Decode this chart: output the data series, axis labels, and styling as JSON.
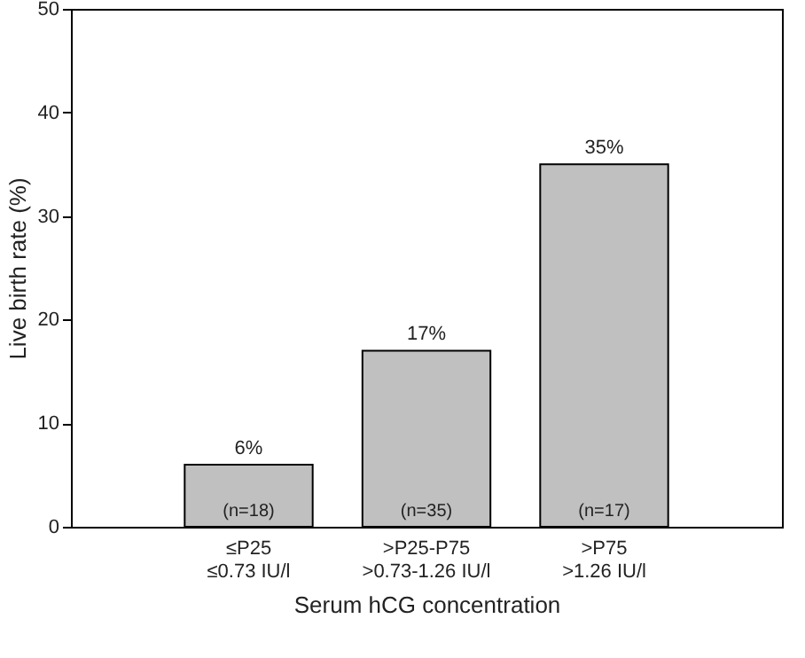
{
  "chart_data": {
    "type": "bar",
    "categories": [
      "≤P25\n≤0.73 IU/l",
      ">P25-P75\n>0.73-1.26 IU/l",
      ">P75\n>1.26 IU/l"
    ],
    "values": [
      6,
      17,
      35
    ],
    "value_labels": [
      "6%",
      "17%",
      "35%"
    ],
    "color": "#c0c0c0",
    "xlabel": "Serum hCG concentration",
    "ylabel": "Live birth rate (%)",
    "ylim": [
      0,
      50
    ],
    "yticks": [
      0,
      10,
      20,
      30,
      40,
      50
    ],
    "grid": false,
    "annotations": [
      "(n=18)",
      "(n=35)",
      "(n=17)"
    ]
  }
}
